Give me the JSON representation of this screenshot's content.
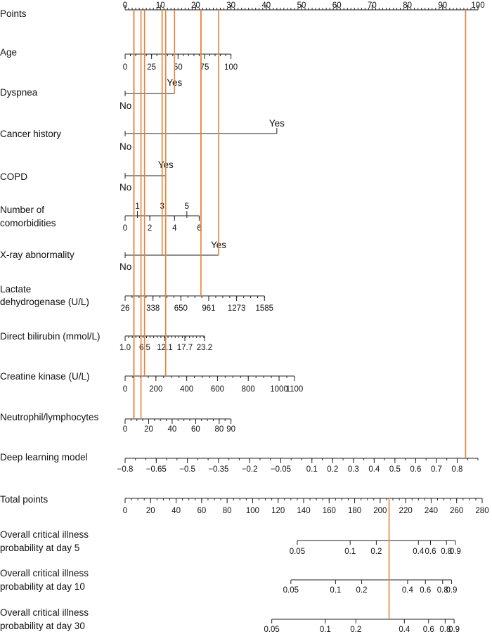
{
  "chart_data": {
    "type": "nomogram",
    "rows": [
      {
        "id": "points",
        "label": [
          "Points"
        ],
        "kind": "continuous",
        "min": 0,
        "max": 100,
        "minor": 1,
        "ticks": [
          0,
          10,
          20,
          30,
          40,
          50,
          60,
          70,
          80,
          90,
          100
        ],
        "labels_above": true
      },
      {
        "id": "age",
        "label": [
          "Age"
        ],
        "kind": "continuous",
        "min": 0,
        "max": 100,
        "minor": 5,
        "ticks": [
          0,
          25,
          50,
          75,
          100
        ],
        "points_range": [
          0,
          30
        ]
      },
      {
        "id": "dyspnea",
        "label": [
          "Dyspnea"
        ],
        "kind": "binary",
        "levels": [
          {
            "text": "No",
            "points": 0
          },
          {
            "text": "Yes",
            "points": 14
          }
        ]
      },
      {
        "id": "cancer",
        "label": [
          "Cancer history"
        ],
        "kind": "binary",
        "levels": [
          {
            "text": "No",
            "points": 0
          },
          {
            "text": "Yes",
            "points": 43
          }
        ]
      },
      {
        "id": "copd",
        "label": [
          "COPD"
        ],
        "kind": "binary",
        "levels": [
          {
            "text": "No",
            "points": 0
          },
          {
            "text": "Yes",
            "points": 11.5
          }
        ]
      },
      {
        "id": "comorb",
        "label": [
          "Number of",
          "comorbidities"
        ],
        "kind": "continuous",
        "min": 0,
        "max": 6,
        "minor": 1,
        "ticks": [
          0,
          2,
          4,
          6
        ],
        "ticks_above": [
          1,
          3,
          5
        ],
        "points_range": [
          0,
          21
        ]
      },
      {
        "id": "xray",
        "label": [
          "X-ray abnormality"
        ],
        "kind": "binary",
        "levels": [
          {
            "text": "No",
            "points": 0
          },
          {
            "text": "Yes",
            "points": 26.5
          }
        ]
      },
      {
        "id": "ldh",
        "label": [
          "Lactate",
          "dehydrogenase (U/L)"
        ],
        "kind": "continuous",
        "min": 26,
        "max": 1585,
        "minor": 78,
        "ticks": [
          26,
          338,
          650,
          961,
          1273,
          1585
        ],
        "points_range": [
          0,
          39.5
        ]
      },
      {
        "id": "bili",
        "label": [
          "Direct bilirubin (mmol/L)"
        ],
        "kind": "continuous",
        "min": 1.0,
        "max": 23.2,
        "minor": 1,
        "ticks": [
          1.0,
          6.5,
          12.1,
          17.7,
          23.2
        ],
        "tick_text": [
          "1.0",
          "6.5",
          "12.1",
          "17.7",
          "23.2"
        ],
        "points_range": [
          0,
          22.5
        ]
      },
      {
        "id": "ck",
        "label": [
          "Creatine kinase (U/L)"
        ],
        "kind": "continuous",
        "min": 0,
        "max": 1100,
        "minor": 50,
        "ticks": [
          0,
          200,
          400,
          600,
          800,
          1000,
          1100
        ],
        "points_range": [
          0,
          48
        ]
      },
      {
        "id": "nlr",
        "label": [
          "Neutrophil/lymphocytes"
        ],
        "kind": "continuous",
        "min": 0,
        "max": 90,
        "minor": 5,
        "ticks": [
          0,
          20,
          40,
          60,
          80,
          90
        ],
        "points_range": [
          0,
          30
        ]
      },
      {
        "id": "dl",
        "label": [
          "Deep learning model"
        ],
        "kind": "continuous",
        "min": -0.8,
        "max": 0.9,
        "minor": 0.05,
        "ticks": [
          -0.8,
          -0.65,
          -0.5,
          -0.35,
          -0.2,
          -0.05,
          0.1,
          0.2,
          0.3,
          0.4,
          0.5,
          0.6,
          0.7,
          0.8
        ],
        "tick_text": [
          "−0.8",
          "−0.65",
          "−0.5",
          "−0.35",
          "−0.2",
          "−0.05",
          "0.1",
          "0.2",
          "0.3",
          "0.4",
          "0.5",
          "0.6",
          "0.7",
          "0.8"
        ],
        "points_range": [
          0,
          100
        ]
      },
      {
        "id": "total",
        "label": [
          "Total points"
        ],
        "kind": "continuous",
        "min": 0,
        "max": 280,
        "minor": 5,
        "ticks": [
          0,
          20,
          40,
          60,
          80,
          100,
          120,
          140,
          160,
          180,
          200,
          220,
          240,
          260,
          280
        ]
      },
      {
        "id": "p5",
        "label": [
          "Overall critical illness",
          "probability at day 5"
        ],
        "kind": "prob",
        "ticks": [
          0.05,
          0.1,
          0.2,
          0.4,
          0.6,
          0.8,
          0.9
        ],
        "tick_text": [
          "0.05",
          "0.1",
          "0.2",
          "0.4",
          "0.6",
          "0.8",
          "0.9"
        ],
        "total_at": [
          135,
          176.5,
          197,
          230,
          239.5,
          252,
          259
        ]
      },
      {
        "id": "p10",
        "label": [
          "Overall critical illness",
          "probability at day 10"
        ],
        "kind": "prob",
        "ticks": [
          0.05,
          0.1,
          0.2,
          0.4,
          0.6,
          0.8,
          0.9
        ],
        "tick_text": [
          "0.05",
          "0.1",
          "0.2",
          "0.4",
          "0.6",
          "0.8",
          "0.9"
        ],
        "total_at": [
          130,
          165,
          185.5,
          221.5,
          235.5,
          249,
          256
        ]
      },
      {
        "id": "p30",
        "label": [
          "Overall critical illness",
          "probability at day 30"
        ],
        "kind": "prob",
        "ticks": [
          0.05,
          0.1,
          0.2,
          0.4,
          0.6,
          0.8,
          0.9
        ],
        "tick_text": [
          "0.05",
          "0.1",
          "0.2",
          "0.4",
          "0.6",
          "0.8",
          "0.9"
        ],
        "total_at": [
          115,
          157,
          181,
          219,
          238,
          251,
          258
        ]
      }
    ],
    "patient_points": [
      4.5,
      10.5,
      14,
      21.5,
      26.5,
      11.5,
      2.5,
      5.5,
      96.5
    ],
    "patient_total": 207,
    "marker_color": "#e8823a"
  }
}
